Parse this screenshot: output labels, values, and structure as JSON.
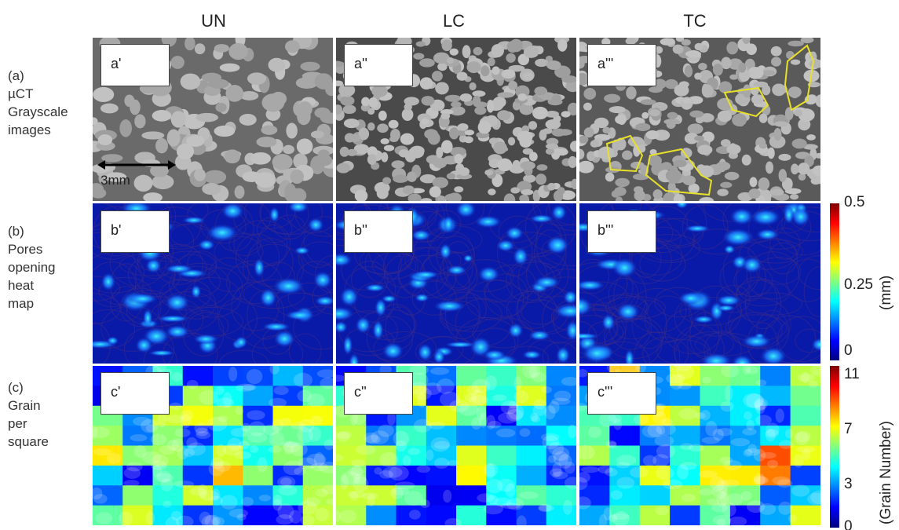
{
  "columns": [
    "UN",
    "LC",
    "TC"
  ],
  "rows": [
    {
      "label_lines": [
        "(a)",
        "µCT",
        "Grayscale",
        "images"
      ],
      "tags": [
        "a'",
        "a''",
        "a'''"
      ]
    },
    {
      "label_lines": [
        "(b)",
        "Pores",
        "opening",
        "heat",
        "map"
      ],
      "tags": [
        "b'",
        "b''",
        "b'''"
      ]
    },
    {
      "label_lines": [
        "(c)",
        "Grain",
        "per",
        "square"
      ],
      "tags": [
        "c'",
        "c''",
        "c'''"
      ]
    }
  ],
  "scale_bar": "3mm",
  "colorbars": [
    {
      "ticks": [
        "0.5",
        "0.25",
        "0"
      ],
      "label": "(mm)"
    },
    {
      "ticks": [
        "11",
        "7",
        "3",
        "0"
      ],
      "label": "(Grain Number)"
    }
  ],
  "colors": {
    "highlight_outline": "#e8e02a",
    "heatmap_base": "#0a1aa8"
  }
}
